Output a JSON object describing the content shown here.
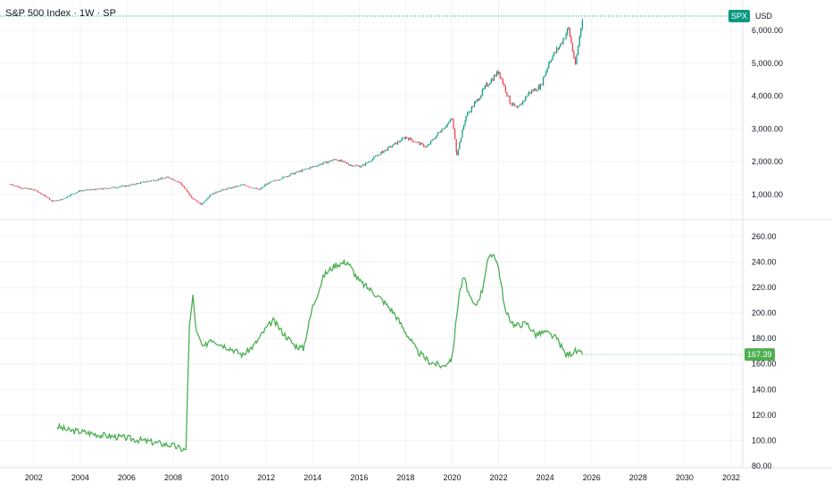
{
  "header": {
    "title": "S&P 500 Index · 1W · SP"
  },
  "scale": {
    "symbol": "SPX",
    "currency": "USD"
  },
  "colors": {
    "up": "#089981",
    "down": "#f23645",
    "ratio_line": "#4caf50",
    "last_value_bg": "#4caf50",
    "grid": "#f0f3fa"
  },
  "chart_data": [
    {
      "type": "candlestick",
      "title": "S&P 500 Index · 1W · SP",
      "ylabel": "USD",
      "yticks": [
        1000,
        2000,
        3000,
        4000,
        5000,
        6000
      ],
      "ytick_labels": [
        "1,000.00",
        "2,000.00",
        "3,000.00",
        "4,000.00",
        "5,000.00",
        "6,000.00"
      ],
      "ylim": [
        300,
        6300
      ],
      "grid": true,
      "series": [
        {
          "values": [
            {
              "x": 2001.0,
              "y": 1320
            },
            {
              "x": 2001.5,
              "y": 1200
            },
            {
              "x": 2002.0,
              "y": 1150
            },
            {
              "x": 2002.5,
              "y": 950
            },
            {
              "x": 2002.8,
              "y": 800
            },
            {
              "x": 2003.2,
              "y": 850
            },
            {
              "x": 2003.6,
              "y": 1000
            },
            {
              "x": 2004.0,
              "y": 1120
            },
            {
              "x": 2005.0,
              "y": 1180
            },
            {
              "x": 2006.0,
              "y": 1270
            },
            {
              "x": 2007.0,
              "y": 1420
            },
            {
              "x": 2007.8,
              "y": 1530
            },
            {
              "x": 2008.3,
              "y": 1360
            },
            {
              "x": 2008.8,
              "y": 900
            },
            {
              "x": 2009.2,
              "y": 700
            },
            {
              "x": 2009.6,
              "y": 1000
            },
            {
              "x": 2010.0,
              "y": 1120
            },
            {
              "x": 2011.0,
              "y": 1300
            },
            {
              "x": 2011.7,
              "y": 1150
            },
            {
              "x": 2012.0,
              "y": 1320
            },
            {
              "x": 2013.0,
              "y": 1600
            },
            {
              "x": 2014.0,
              "y": 1850
            },
            {
              "x": 2015.0,
              "y": 2080
            },
            {
              "x": 2015.6,
              "y": 1900
            },
            {
              "x": 2016.1,
              "y": 1860
            },
            {
              "x": 2017.0,
              "y": 2300
            },
            {
              "x": 2018.0,
              "y": 2750
            },
            {
              "x": 2018.9,
              "y": 2450
            },
            {
              "x": 2019.5,
              "y": 2950
            },
            {
              "x": 2020.0,
              "y": 3300
            },
            {
              "x": 2020.2,
              "y": 2240
            },
            {
              "x": 2020.6,
              "y": 3400
            },
            {
              "x": 2021.0,
              "y": 3800
            },
            {
              "x": 2021.5,
              "y": 4350
            },
            {
              "x": 2022.0,
              "y": 4750
            },
            {
              "x": 2022.5,
              "y": 3800
            },
            {
              "x": 2022.8,
              "y": 3600
            },
            {
              "x": 2023.3,
              "y": 4100
            },
            {
              "x": 2023.8,
              "y": 4300
            },
            {
              "x": 2024.2,
              "y": 5100
            },
            {
              "x": 2024.6,
              "y": 5500
            },
            {
              "x": 2025.0,
              "y": 6050
            },
            {
              "x": 2025.3,
              "y": 4950
            },
            {
              "x": 2025.6,
              "y": 6400
            }
          ]
        }
      ]
    },
    {
      "type": "line",
      "yticks": [
        80,
        100,
        120,
        140,
        160,
        180,
        200,
        220,
        240,
        260
      ],
      "ytick_labels": [
        "80.00",
        "100.00",
        "120.00",
        "140.00",
        "160.00",
        "180.00",
        "200.00",
        "220.00",
        "240.00",
        "260.00"
      ],
      "ylim": [
        80,
        262
      ],
      "last_value": 167.39,
      "last_value_label": "167.39",
      "xticks": [
        2002,
        2004,
        2006,
        2008,
        2010,
        2012,
        2014,
        2016,
        2018,
        2020,
        2022,
        2024,
        2026,
        2028,
        2030,
        2032
      ],
      "xtick_labels": [
        "2002",
        "2004",
        "2006",
        "2008",
        "2010",
        "2012",
        "2014",
        "2016",
        "2018",
        "2020",
        "2022",
        "2024",
        "2026",
        "2028",
        "2030",
        "2032"
      ],
      "xlim": [
        2000.55,
        2032.5
      ],
      "grid": true,
      "series": [
        {
          "values": [
            {
              "x": 2003.0,
              "y": 111
            },
            {
              "x": 2003.5,
              "y": 108
            },
            {
              "x": 2004.0,
              "y": 107
            },
            {
              "x": 2005.0,
              "y": 104
            },
            {
              "x": 2006.0,
              "y": 102
            },
            {
              "x": 2007.0,
              "y": 99
            },
            {
              "x": 2008.0,
              "y": 96
            },
            {
              "x": 2008.4,
              "y": 93
            },
            {
              "x": 2008.55,
              "y": 93
            },
            {
              "x": 2008.7,
              "y": 190
            },
            {
              "x": 2008.85,
              "y": 213
            },
            {
              "x": 2009.0,
              "y": 185
            },
            {
              "x": 2009.3,
              "y": 172
            },
            {
              "x": 2009.6,
              "y": 180
            },
            {
              "x": 2010.0,
              "y": 176
            },
            {
              "x": 2010.5,
              "y": 172
            },
            {
              "x": 2011.0,
              "y": 167
            },
            {
              "x": 2011.5,
              "y": 175
            },
            {
              "x": 2012.0,
              "y": 188
            },
            {
              "x": 2012.3,
              "y": 194
            },
            {
              "x": 2012.7,
              "y": 185
            },
            {
              "x": 2013.2,
              "y": 175
            },
            {
              "x": 2013.6,
              "y": 172
            },
            {
              "x": 2014.0,
              "y": 205
            },
            {
              "x": 2014.5,
              "y": 230
            },
            {
              "x": 2015.0,
              "y": 238
            },
            {
              "x": 2015.5,
              "y": 240
            },
            {
              "x": 2016.0,
              "y": 225
            },
            {
              "x": 2016.5,
              "y": 218
            },
            {
              "x": 2017.0,
              "y": 210
            },
            {
              "x": 2017.5,
              "y": 200
            },
            {
              "x": 2018.0,
              "y": 185
            },
            {
              "x": 2018.5,
              "y": 170
            },
            {
              "x": 2019.0,
              "y": 162
            },
            {
              "x": 2019.6,
              "y": 158
            },
            {
              "x": 2020.0,
              "y": 165
            },
            {
              "x": 2020.3,
              "y": 215
            },
            {
              "x": 2020.5,
              "y": 228
            },
            {
              "x": 2020.8,
              "y": 210
            },
            {
              "x": 2021.0,
              "y": 205
            },
            {
              "x": 2021.3,
              "y": 218
            },
            {
              "x": 2021.5,
              "y": 240
            },
            {
              "x": 2021.8,
              "y": 247
            },
            {
              "x": 2022.0,
              "y": 235
            },
            {
              "x": 2022.3,
              "y": 200
            },
            {
              "x": 2022.7,
              "y": 190
            },
            {
              "x": 2023.2,
              "y": 192
            },
            {
              "x": 2023.6,
              "y": 183
            },
            {
              "x": 2024.0,
              "y": 185
            },
            {
              "x": 2024.5,
              "y": 180
            },
            {
              "x": 2024.9,
              "y": 167
            },
            {
              "x": 2025.3,
              "y": 170
            },
            {
              "x": 2025.6,
              "y": 167.39
            }
          ]
        }
      ]
    }
  ]
}
